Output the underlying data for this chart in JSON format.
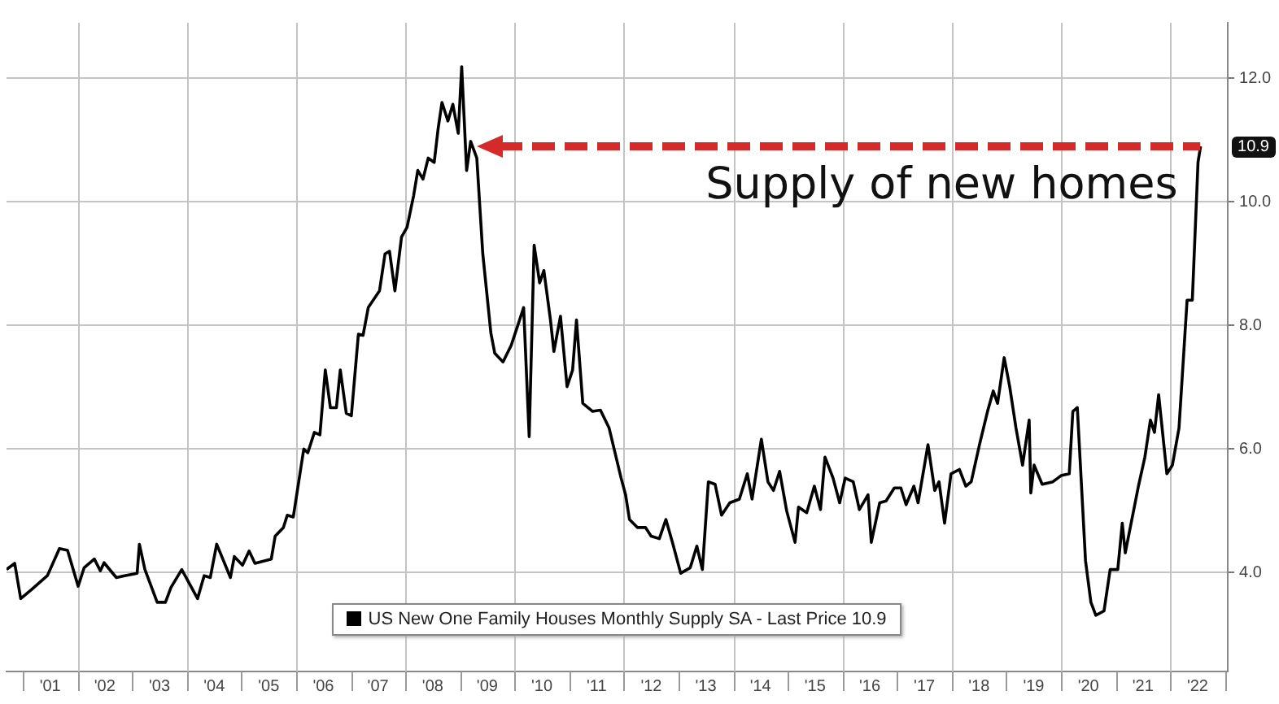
{
  "chart_data": {
    "type": "line",
    "x": [
      "2000-09-13",
      "2000-11-07",
      "2000-12-17",
      "2001-02-25",
      "2001-06-13",
      "2001-09-02",
      "2001-10-26",
      "2002-01-05",
      "2002-02-14",
      "2002-04-23",
      "2002-06-02",
      "2002-06-27",
      "2002-09-17",
      "2002-11-11",
      "2003-02-03",
      "2003-02-18",
      "2003-03-27",
      "2003-06-17",
      "2003-08-11",
      "2003-09-17",
      "2003-11-28",
      "2004-03-13",
      "2004-04-26",
      "2004-06-06",
      "2004-07-19",
      "2004-10-19",
      "2004-11-14",
      "2005-01-08",
      "2005-02-21",
      "2005-04-01",
      "2005-07-19",
      "2005-08-14",
      "2005-10-08",
      "2005-11-03",
      "2005-12-13",
      "2006-02-21",
      "2006-03-20",
      "2006-05-03",
      "2006-06-09",
      "2006-07-15",
      "2006-08-18",
      "2006-09-27",
      "2006-10-23",
      "2006-12-02",
      "2007-01-05",
      "2007-02-21",
      "2007-03-24",
      "2007-04-28",
      "2007-07-12",
      "2007-08-18",
      "2007-09-17",
      "2007-10-23",
      "2007-12-06",
      "2008-01-12",
      "2008-02-25",
      "2008-03-24",
      "2008-04-28",
      "2008-06-02",
      "2008-07-12",
      "2008-08-07",
      "2008-09-02",
      "2008-10-12",
      "2008-11-14",
      "2008-12-20",
      "2009-01-12",
      "2009-02-14",
      "2009-03-13",
      "2009-04-23",
      "2009-06-02",
      "2009-07-26",
      "2009-08-21",
      "2009-10-15",
      "2009-12-09",
      "2010-03-02",
      "2010-04-08",
      "2010-05-11",
      "2010-06-17",
      "2010-07-15",
      "2010-08-28",
      "2010-09-20",
      "2010-11-03",
      "2010-12-17",
      "2011-01-23",
      "2011-02-18",
      "2011-04-01",
      "2011-06-06",
      "2011-07-28",
      "2011-09-24",
      "2011-12-13",
      "2012-01-12",
      "2012-02-07",
      "2012-04-01",
      "2012-05-25",
      "2012-07-01",
      "2012-08-25",
      "2012-10-08",
      "2012-11-21",
      "2013-01-15",
      "2013-03-20",
      "2013-05-03",
      "2013-06-09",
      "2013-07-19",
      "2013-09-02",
      "2013-10-15",
      "2013-12-09",
      "2014-02-11",
      "2014-04-05",
      "2014-05-07",
      "2014-07-08",
      "2014-08-21",
      "2014-09-27",
      "2014-11-07",
      "2014-12-24",
      "2015-02-18",
      "2015-03-13",
      "2015-05-07",
      "2015-06-27",
      "2015-08-07",
      "2015-09-06",
      "2015-10-30",
      "2015-12-13",
      "2016-01-19",
      "2016-03-13",
      "2016-04-23",
      "2016-06-20",
      "2016-07-12",
      "2016-09-06",
      "2016-10-19",
      "2016-12-13",
      "2017-01-26",
      "2017-03-02",
      "2017-04-23",
      "2017-05-21",
      "2017-07-26",
      "2017-09-09",
      "2017-10-08",
      "2017-11-14",
      "2017-12-27",
      "2018-02-21",
      "2018-04-05",
      "2018-05-11",
      "2018-07-05",
      "2018-08-28",
      "2018-10-05",
      "2018-11-03",
      "2018-12-17",
      "2019-01-23",
      "2019-03-06",
      "2019-04-19",
      "2019-06-02",
      "2019-06-13",
      "2019-07-05",
      "2019-08-28",
      "2019-11-07",
      "2020-01-01",
      "2020-02-25",
      "2020-03-20",
      "2020-04-19",
      "2020-06-13",
      "2020-07-19",
      "2020-08-21",
      "2020-10-15",
      "2020-11-25",
      "2021-01-15",
      "2021-02-14",
      "2021-03-06",
      "2021-06-02",
      "2021-07-15",
      "2021-08-21",
      "2021-09-17",
      "2021-10-15",
      "2021-12-09",
      "2022-01-15",
      "2022-02-28",
      "2022-04-23",
      "2022-05-28",
      "2022-07-05",
      "2022-07-22"
    ],
    "series": [
      {
        "name": "US New One Family Houses Monthly Supply SA - Last Price 10.9",
        "color": "#000000",
        "values": [
          4.05,
          4.15,
          3.58,
          3.72,
          3.95,
          4.39,
          4.36,
          3.78,
          4.08,
          4.22,
          4.03,
          4.16,
          3.92,
          3.95,
          3.99,
          4.46,
          4.05,
          3.52,
          3.52,
          3.76,
          4.05,
          3.58,
          3.95,
          3.92,
          4.46,
          3.92,
          4.26,
          4.12,
          4.35,
          4.15,
          4.22,
          4.59,
          4.73,
          4.93,
          4.9,
          6.0,
          5.94,
          6.27,
          6.23,
          7.28,
          6.67,
          6.67,
          7.28,
          6.58,
          6.54,
          7.86,
          7.84,
          8.29,
          8.56,
          9.16,
          9.2,
          8.56,
          9.43,
          9.59,
          10.1,
          10.51,
          10.37,
          10.71,
          10.64,
          11.18,
          11.61,
          11.31,
          11.58,
          11.11,
          12.19,
          10.51,
          10.98,
          10.71,
          9.16,
          7.88,
          7.55,
          7.41,
          7.68,
          8.29,
          6.2,
          9.3,
          8.69,
          8.89,
          8.09,
          7.58,
          8.15,
          7.01,
          7.28,
          8.09,
          6.74,
          6.61,
          6.63,
          6.34,
          5.53,
          5.26,
          4.86,
          4.73,
          4.73,
          4.59,
          4.55,
          4.86,
          4.49,
          3.99,
          4.08,
          4.43,
          4.05,
          5.47,
          5.43,
          4.93,
          5.13,
          5.19,
          5.6,
          5.19,
          6.16,
          5.47,
          5.33,
          5.64,
          5.0,
          4.49,
          5.06,
          4.97,
          5.4,
          5.02,
          5.87,
          5.53,
          5.13,
          5.53,
          5.47,
          5.02,
          5.26,
          4.49,
          5.13,
          5.16,
          5.37,
          5.37,
          5.1,
          5.4,
          5.13,
          6.07,
          5.33,
          5.47,
          4.8,
          5.6,
          5.67,
          5.4,
          5.47,
          6.07,
          6.61,
          6.94,
          6.74,
          7.48,
          7.01,
          6.34,
          5.74,
          6.47,
          5.29,
          5.74,
          5.43,
          5.47,
          5.57,
          5.6,
          6.61,
          6.67,
          4.19,
          3.52,
          3.31,
          3.38,
          4.05,
          4.05,
          4.8,
          4.32,
          5.4,
          5.87,
          6.47,
          6.27,
          6.88,
          5.6,
          5.74,
          6.34,
          8.41,
          8.41,
          10.64,
          10.9
        ]
      }
    ],
    "xlim": [
      "2000-09-13",
      "2023-01-20"
    ],
    "xticks": [
      {
        "value": "2001-07-02",
        "label": "'01"
      },
      {
        "value": "2002-07-02",
        "label": "'02"
      },
      {
        "value": "2003-07-02",
        "label": "'03"
      },
      {
        "value": "2004-07-02",
        "label": "'04"
      },
      {
        "value": "2005-07-02",
        "label": "'05"
      },
      {
        "value": "2006-07-02",
        "label": "'06"
      },
      {
        "value": "2007-07-02",
        "label": "'07"
      },
      {
        "value": "2008-07-02",
        "label": "'08"
      },
      {
        "value": "2009-07-02",
        "label": "'09"
      },
      {
        "value": "2010-07-02",
        "label": "'10"
      },
      {
        "value": "2011-07-02",
        "label": "'11"
      },
      {
        "value": "2012-07-02",
        "label": "'12"
      },
      {
        "value": "2013-07-02",
        "label": "'13"
      },
      {
        "value": "2014-07-02",
        "label": "'14"
      },
      {
        "value": "2015-07-02",
        "label": "'15"
      },
      {
        "value": "2016-07-02",
        "label": "'16"
      },
      {
        "value": "2017-07-02",
        "label": "'17"
      },
      {
        "value": "2018-07-02",
        "label": "'18"
      },
      {
        "value": "2019-07-02",
        "label": "'19"
      },
      {
        "value": "2020-07-02",
        "label": "'20"
      },
      {
        "value": "2021-07-02",
        "label": "'21"
      },
      {
        "value": "2022-07-02",
        "label": "'22"
      }
    ],
    "ylim": [
      2.4,
      12.9
    ],
    "yticks": [
      {
        "value": 4,
        "label": "4.0"
      },
      {
        "value": 6,
        "label": "6.0"
      },
      {
        "value": 8,
        "label": "8.0"
      },
      {
        "value": 10,
        "label": "10.0"
      },
      {
        "value": 12,
        "label": "12.0"
      }
    ],
    "grid": true,
    "legend": "bottom",
    "marker": "none",
    "line_style": "solid",
    "annotations": [
      "Supply of new homes",
      {
        "text": "10.9",
        "x": "2022-07-22",
        "y": 10.9
      }
    ]
  }
}
